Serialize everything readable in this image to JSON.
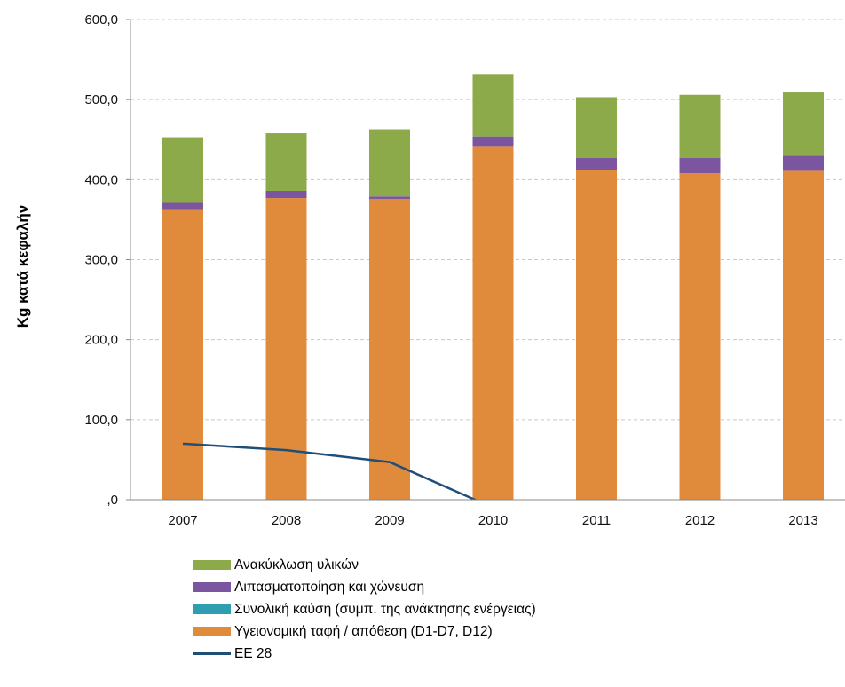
{
  "chart_data": {
    "type": "bar",
    "stacked": true,
    "ylabel": "Kg κατά κεφαλήν",
    "ylim": [
      0,
      600
    ],
    "yticks": [
      "600,0",
      "500,0",
      "400,0",
      "300,0",
      "200,0",
      "100,0",
      ",0"
    ],
    "grid": true,
    "legend_position": "bottom",
    "categories": [
      "2007",
      "2008",
      "2009",
      "2010",
      "2011",
      "2012",
      "2013"
    ],
    "series": [
      {
        "name": "Υγειονομική ταφή / απόθεση (D1-D7, D12)",
        "color": "#E08A3C",
        "kind": "bar",
        "values": [
          362,
          377,
          376,
          441,
          412,
          408,
          411
        ]
      },
      {
        "name": "Συνολική καύση (συμπ. της ανάκτησης ενέργειας)",
        "color": "#2E9EB0",
        "kind": "bar",
        "values": [
          0,
          0,
          0,
          0,
          0,
          0,
          0
        ]
      },
      {
        "name": "Λιπασματοποίηση και χώνευση",
        "color": "#7B55A0",
        "kind": "bar",
        "values": [
          9,
          9,
          3,
          13,
          15,
          19,
          19
        ]
      },
      {
        "name": "Ανακύκλωση υλικών",
        "color": "#8DAA4B",
        "kind": "bar",
        "values": [
          82,
          72,
          84,
          78,
          76,
          79,
          79
        ]
      },
      {
        "name": "ΕΕ 28",
        "color": "#1F4E79",
        "kind": "line",
        "values": [
          70,
          62,
          47,
          -10,
          null,
          null,
          null
        ]
      }
    ],
    "legend_order": [
      "Ανακύκλωση υλικών",
      "Λιπασματοποίηση και χώνευση",
      "Συνολική καύση (συμπ. της ανάκτησης ενέργειας)",
      "Υγειονομική ταφή / απόθεση (D1-D7, D12)",
      "ΕΕ 28"
    ]
  }
}
